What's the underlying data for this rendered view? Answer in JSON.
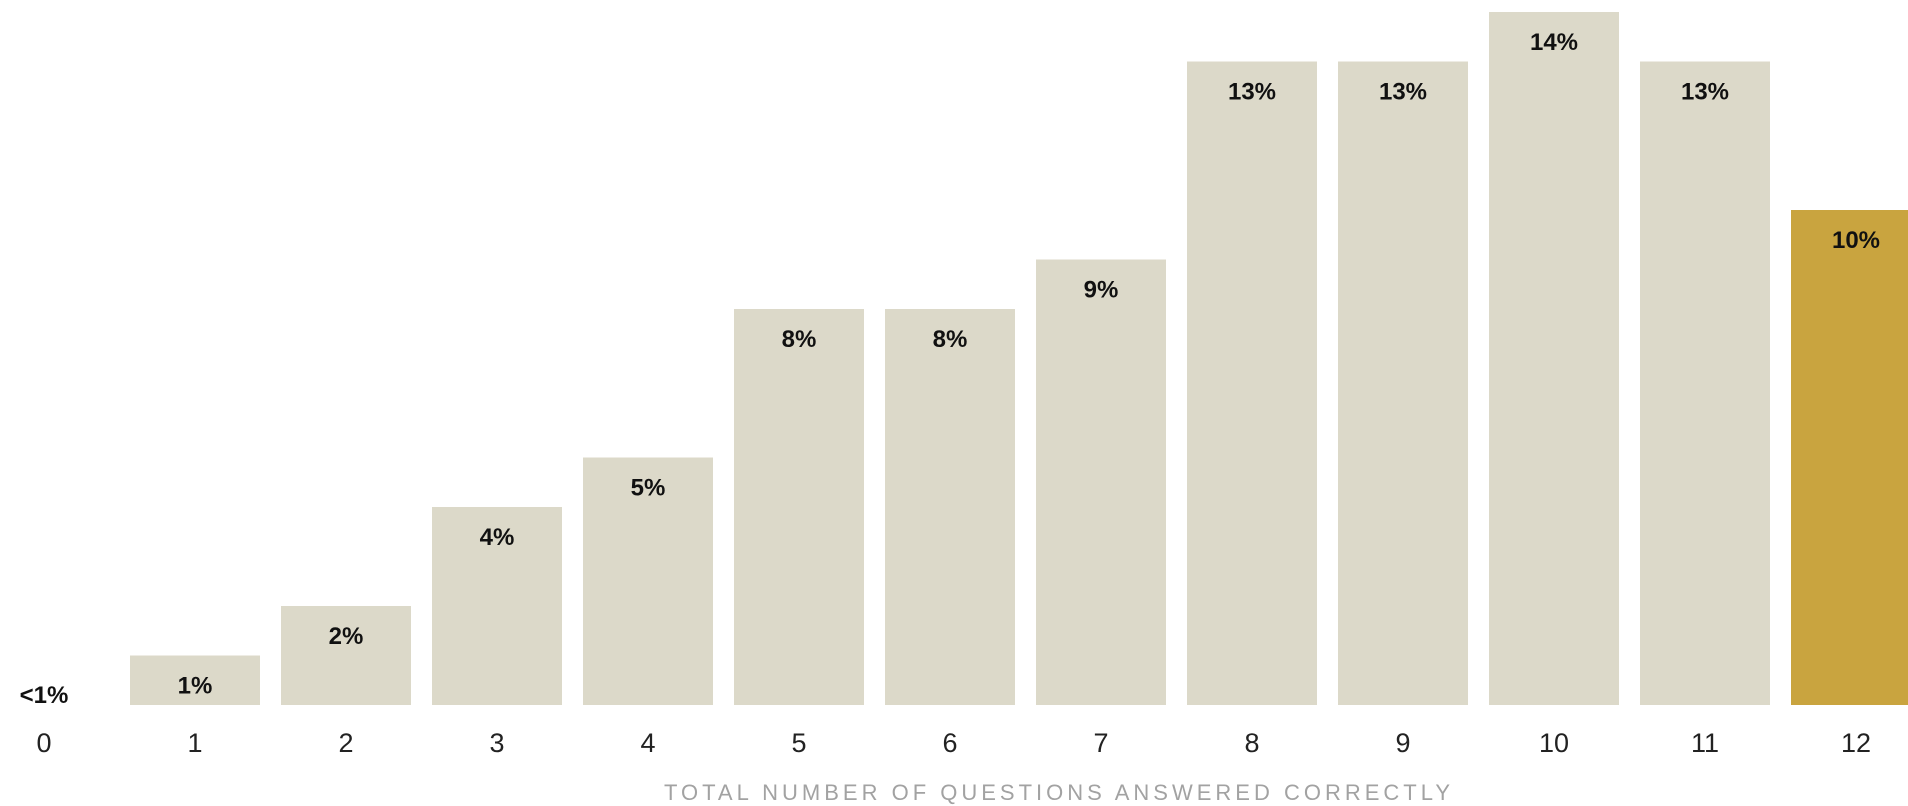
{
  "chart_data": {
    "type": "bar",
    "title": "",
    "xlabel": "TOTAL NUMBER OF QUESTIONS ANSWERED CORRECTLY",
    "ylabel": "",
    "categories": [
      "0",
      "1",
      "2",
      "3",
      "4",
      "5",
      "6",
      "7",
      "8",
      "9",
      "10",
      "11",
      "12"
    ],
    "values": [
      0.3,
      1,
      2,
      4,
      5,
      8,
      8,
      9,
      13,
      13,
      14,
      13,
      10
    ],
    "value_labels": [
      "<1%",
      "1%",
      "2%",
      "4%",
      "5%",
      "8%",
      "8%",
      "9%",
      "13%",
      "13%",
      "14%",
      "13%",
      "10%"
    ],
    "ylim": [
      0,
      14
    ],
    "grid": false,
    "legend": "none",
    "highlight_category": "12"
  },
  "colors": {
    "bar_default": "#dcd9c9",
    "bar_highlight": "#c9a43f",
    "label_text": "#111111",
    "tick_text": "#222222",
    "axis_title_text": "#a2a2a2"
  }
}
